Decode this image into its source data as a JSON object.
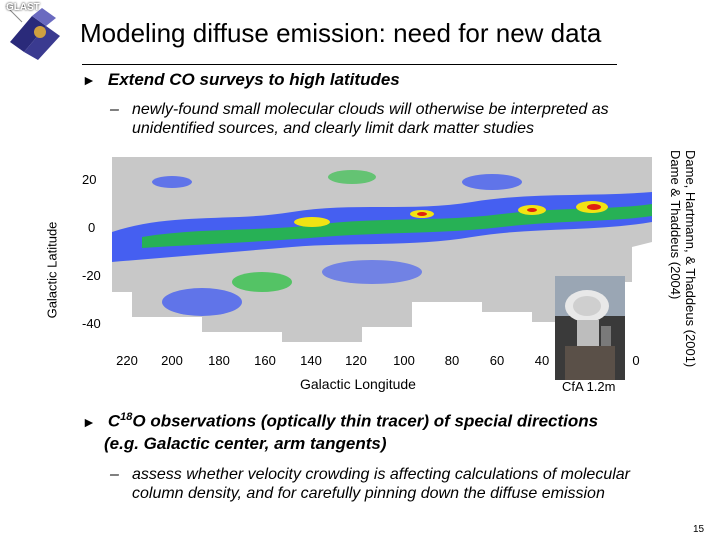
{
  "header": {
    "logo_text": "GLAST",
    "title": "Modeling diffuse emission: need for new data"
  },
  "bullet1": {
    "marker": "►",
    "text": "Extend CO surveys to high latitudes"
  },
  "sub1": {
    "dash": "–",
    "text": "newly-found small molecular clouds will otherwise be interpreted as unidentified sources, and clearly limit dark matter studies"
  },
  "figure": {
    "ylabel": "Galactic Latitude",
    "xlabel": "Galactic Longitude",
    "yticks": [
      "20",
      "0",
      "-20",
      "-40"
    ],
    "xticks": [
      "220",
      "200",
      "180",
      "160",
      "140",
      "120",
      "100",
      "80",
      "60",
      "40",
      "0"
    ],
    "credit_line1": "Dame, Hartmann, & Thaddeus (2001)",
    "credit_line2": "Dame & Thaddeus (2004)",
    "photo_caption": "CfA 1.2m"
  },
  "bullet2": {
    "marker": "►",
    "pre": "C",
    "sup": "18",
    "line1": "O observations (optically thin tracer) of special directions",
    "line2": "(e.g. Galactic center, arm tangents)"
  },
  "sub2": {
    "dash": "–",
    "text": "assess whether velocity crowding is affecting calculations of molecular column density, and for carefully pinning down the diffuse emission"
  },
  "page_number": "15",
  "colors": {
    "map_bg": "#c8c8c8",
    "map_blue": "#1a3cff",
    "map_green": "#22c03a",
    "map_yellow": "#f2e313",
    "map_red": "#e02010"
  }
}
